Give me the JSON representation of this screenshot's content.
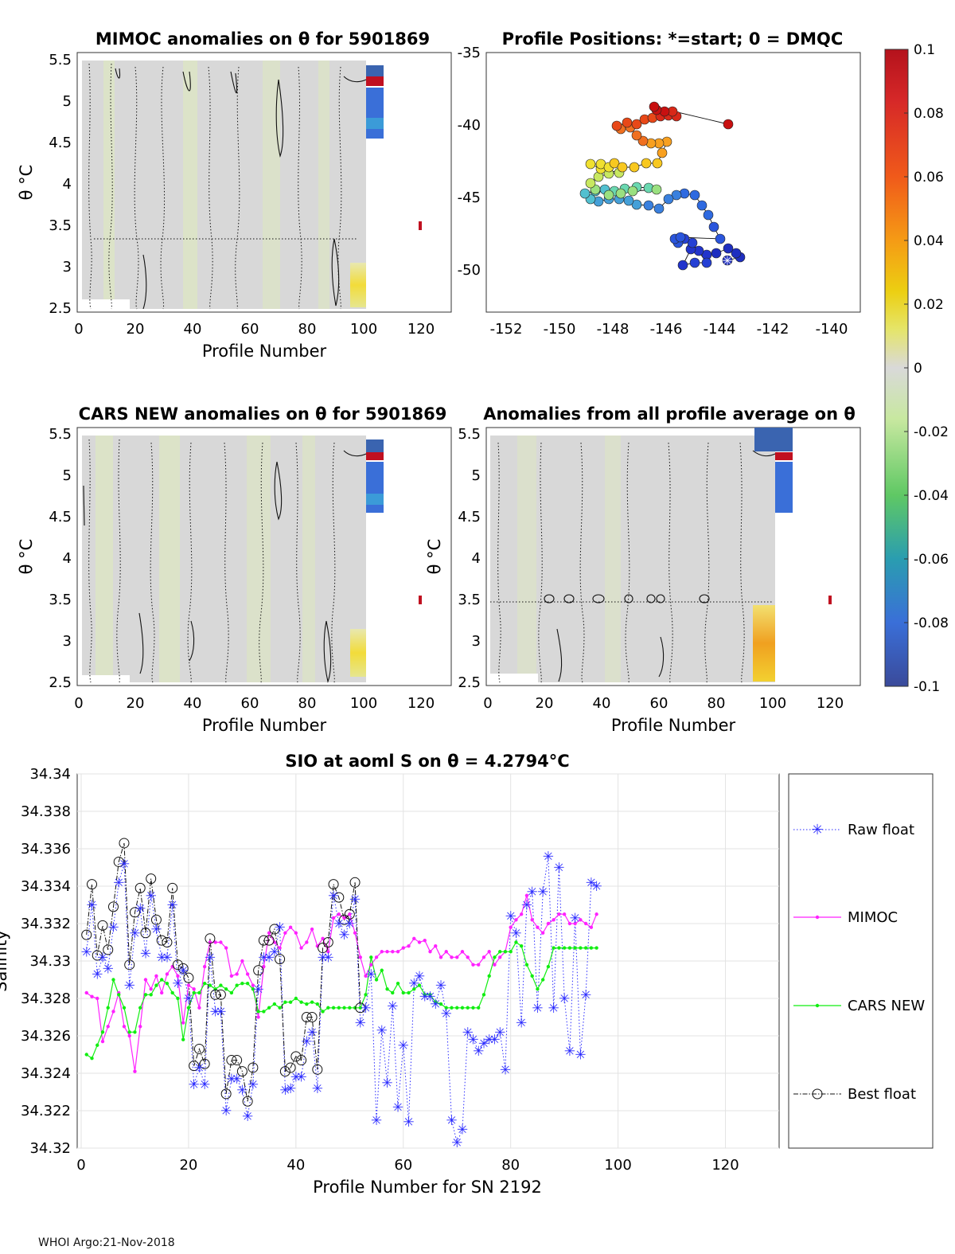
{
  "footer": "WHOI Argo:21-Nov-2018",
  "colorbar": {
    "ticks": [
      "0.1",
      "0.08",
      "0.06",
      "0.04",
      "0.02",
      "0",
      "-0.02",
      "-0.04",
      "-0.06",
      "-0.08",
      "-0.1"
    ],
    "stops": [
      "#b4121c",
      "#d62828",
      "#f05a1a",
      "#f59b15",
      "#eccf12",
      "#e5e56a",
      "#d9d9d9",
      "#c8e8a0",
      "#5fc864",
      "#2a9db0",
      "#3a6fd8",
      "#3a4a9a"
    ]
  },
  "panels": [
    {
      "title": "MIMOC anomalies on θ  for 5901869",
      "ylabel": "θ °C",
      "xlabel": "Profile Number",
      "yticks": [
        "5.5",
        "5",
        "4.5",
        "4",
        "3.5",
        "3",
        "2.5"
      ],
      "xticks": [
        "0",
        "20",
        "40",
        "60",
        "80",
        "100",
        "120"
      ]
    },
    {
      "title": "CARS NEW anomalies on θ for 5901869",
      "ylabel": "θ °C",
      "xlabel": "Profile Number",
      "yticks": [
        "5.5",
        "5",
        "4.5",
        "4",
        "3.5",
        "3",
        "2.5"
      ],
      "xticks": [
        "0",
        "20",
        "40",
        "60",
        "80",
        "100",
        "120"
      ]
    },
    {
      "title": "Anomalies from all profile average on θ",
      "ylabel": "θ °C",
      "xlabel": "Profile Number",
      "yticks": [
        "5.5",
        "5",
        "4.5",
        "4",
        "3.5",
        "3",
        "2.5"
      ],
      "xticks": [
        "0",
        "20",
        "40",
        "60",
        "80",
        "100",
        "120"
      ]
    }
  ],
  "map": {
    "title": "Profile Positions: *=start; 0 = DMQC",
    "xticks": [
      "-152",
      "-150",
      "-148",
      "-146",
      "-144",
      "-142",
      "-140"
    ],
    "yticks": [
      "-35",
      "-40",
      "-45",
      "-50"
    ]
  },
  "chart_data": {
    "type": "line",
    "title": "SIO at aoml S on θ = 4.2794°C",
    "xlabel": "Profile Number for SN 2192",
    "ylabel": "Salinity",
    "xlim": [
      0,
      130
    ],
    "ylim": [
      34.32,
      34.34
    ],
    "xticks": [
      "0",
      "20",
      "40",
      "60",
      "80",
      "100",
      "120"
    ],
    "yticks": [
      "34.34",
      "34.338",
      "34.336",
      "34.334",
      "34.332",
      "34.33",
      "34.328",
      "34.326",
      "34.324",
      "34.322",
      "34.32"
    ],
    "legend": [
      "Raw float",
      "MIMOC",
      "CARS NEW",
      "Best float"
    ],
    "raw_float": [
      [
        1,
        34.3305
      ],
      [
        2,
        34.333
      ],
      [
        3,
        34.3293
      ],
      [
        4,
        34.3302
      ],
      [
        5,
        34.3296
      ],
      [
        6,
        34.3318
      ],
      [
        7,
        34.3342
      ],
      [
        8,
        34.3352
      ],
      [
        9,
        34.3287
      ],
      [
        10,
        34.3315
      ],
      [
        11,
        34.3328
      ],
      [
        12,
        34.3304
      ],
      [
        13,
        34.3335
      ],
      [
        14,
        34.3317
      ],
      [
        15,
        34.3302
      ],
      [
        16,
        34.3302
      ],
      [
        17,
        34.333
      ],
      [
        18,
        34.3288
      ],
      [
        19,
        34.3295
      ],
      [
        20,
        34.328
      ],
      [
        21,
        34.3234
      ],
      [
        22,
        34.3243
      ],
      [
        23,
        34.3234
      ],
      [
        24,
        34.3302
      ],
      [
        25,
        34.3273
      ],
      [
        26,
        34.3273
      ],
      [
        27,
        34.322
      ],
      [
        28,
        34.3237
      ],
      [
        29,
        34.3237
      ],
      [
        30,
        34.3231
      ],
      [
        31,
        34.3217
      ],
      [
        32,
        34.3234
      ],
      [
        33,
        34.3285
      ],
      [
        34,
        34.3302
      ],
      [
        35,
        34.3302
      ],
      [
        36,
        34.3305
      ],
      [
        37,
        34.3318
      ],
      [
        38,
        34.3231
      ],
      [
        39,
        34.3232
      ],
      [
        40,
        34.3238
      ],
      [
        41,
        34.3238
      ],
      [
        42,
        34.3257
      ],
      [
        43,
        34.3262
      ],
      [
        44,
        34.3232
      ],
      [
        45,
        34.3302
      ],
      [
        46,
        34.3302
      ],
      [
        47,
        34.3335
      ],
      [
        48,
        34.332
      ],
      [
        49,
        34.3314
      ],
      [
        50,
        34.332
      ],
      [
        51,
        34.3333
      ],
      [
        52,
        34.3267
      ],
      [
        53,
        34.3275
      ],
      [
        54,
        34.3293
      ],
      [
        55,
        34.3215
      ],
      [
        56,
        34.3263
      ],
      [
        57,
        34.3235
      ],
      [
        58,
        34.3276
      ],
      [
        59,
        34.3222
      ],
      [
        60,
        34.3255
      ],
      [
        61,
        34.3214
      ],
      [
        62,
        34.3288
      ],
      [
        63,
        34.3292
      ],
      [
        64,
        34.3281
      ],
      [
        65,
        34.3281
      ],
      [
        66,
        34.3277
      ],
      [
        67,
        34.3287
      ],
      [
        68,
        34.3272
      ],
      [
        69,
        34.3215
      ],
      [
        70,
        34.3203
      ],
      [
        71,
        34.321
      ],
      [
        72,
        34.3262
      ],
      [
        73,
        34.3258
      ],
      [
        74,
        34.3252
      ],
      [
        75,
        34.3256
      ],
      [
        76,
        34.3258
      ],
      [
        77,
        34.3258
      ],
      [
        78,
        34.3262
      ],
      [
        79,
        34.3242
      ],
      [
        80,
        34.3324
      ],
      [
        81,
        34.3315
      ],
      [
        82,
        34.3267
      ],
      [
        83,
        34.333
      ],
      [
        84,
        34.3337
      ],
      [
        85,
        34.3275
      ],
      [
        86,
        34.3337
      ],
      [
        87,
        34.3356
      ],
      [
        88,
        34.3275
      ],
      [
        89,
        34.335
      ],
      [
        90,
        34.328
      ],
      [
        91,
        34.3252
      ],
      [
        92,
        34.3323
      ],
      [
        93,
        34.325
      ],
      [
        94,
        34.3282
      ],
      [
        95,
        34.3342
      ],
      [
        96,
        34.334
      ]
    ],
    "mimoc": [
      [
        1,
        34.3283
      ],
      [
        2,
        34.3281
      ],
      [
        3,
        34.328
      ],
      [
        4,
        34.3257
      ],
      [
        5,
        34.3265
      ],
      [
        6,
        34.3273
      ],
      [
        7,
        34.3283
      ],
      [
        8,
        34.3265
      ],
      [
        9,
        34.326
      ],
      [
        10,
        34.3241
      ],
      [
        11,
        34.3265
      ],
      [
        12,
        34.329
      ],
      [
        13,
        34.3285
      ],
      [
        14,
        34.3292
      ],
      [
        15,
        34.3283
      ],
      [
        16,
        34.3293
      ],
      [
        17,
        34.3297
      ],
      [
        18,
        34.3292
      ],
      [
        19,
        34.3267
      ],
      [
        20,
        34.3287
      ],
      [
        21,
        34.3285
      ],
      [
        22,
        34.3275
      ],
      [
        23,
        34.3297
      ],
      [
        24,
        34.331
      ],
      [
        25,
        34.331
      ],
      [
        26,
        34.331
      ],
      [
        27,
        34.3307
      ],
      [
        28,
        34.3292
      ],
      [
        29,
        34.3293
      ],
      [
        30,
        34.33
      ],
      [
        31,
        34.3293
      ],
      [
        32,
        34.3287
      ],
      [
        33,
        34.327
      ],
      [
        34,
        34.3297
      ],
      [
        35,
        34.3315
      ],
      [
        36,
        34.331
      ],
      [
        37,
        34.3307
      ],
      [
        38,
        34.3315
      ],
      [
        39,
        34.3318
      ],
      [
        40,
        34.3315
      ],
      [
        41,
        34.3307
      ],
      [
        42,
        34.331
      ],
      [
        43,
        34.3317
      ],
      [
        44,
        34.3308
      ],
      [
        45,
        34.3312
      ],
      [
        46,
        34.3305
      ],
      [
        47,
        34.3323
      ],
      [
        48,
        34.3325
      ],
      [
        49,
        34.3323
      ],
      [
        50,
        34.3325
      ],
      [
        51,
        34.3315
      ],
      [
        52,
        34.3302
      ],
      [
        53,
        34.3292
      ],
      [
        54,
        34.3298
      ],
      [
        55,
        34.3302
      ],
      [
        56,
        34.3305
      ],
      [
        57,
        34.3305
      ],
      [
        58,
        34.3305
      ],
      [
        59,
        34.3305
      ],
      [
        60,
        34.3307
      ],
      [
        61,
        34.3308
      ],
      [
        62,
        34.3312
      ],
      [
        63,
        34.331
      ],
      [
        64,
        34.3311
      ],
      [
        65,
        34.3305
      ],
      [
        66,
        34.3308
      ],
      [
        67,
        34.3302
      ],
      [
        68,
        34.3305
      ],
      [
        69,
        34.3302
      ],
      [
        70,
        34.3302
      ],
      [
        71,
        34.3305
      ],
      [
        72,
        34.3302
      ],
      [
        73,
        34.3298
      ],
      [
        74,
        34.3298
      ],
      [
        75,
        34.3302
      ],
      [
        76,
        34.3305
      ],
      [
        77,
        34.3298
      ],
      [
        78,
        34.3302
      ],
      [
        79,
        34.3305
      ],
      [
        80,
        34.3318
      ],
      [
        81,
        34.3322
      ],
      [
        82,
        34.3325
      ],
      [
        83,
        34.3335
      ],
      [
        84,
        34.3322
      ],
      [
        85,
        34.3318
      ],
      [
        86,
        34.3315
      ],
      [
        87,
        34.332
      ],
      [
        88,
        34.3322
      ],
      [
        89,
        34.3325
      ],
      [
        90,
        34.3325
      ],
      [
        91,
        34.332
      ],
      [
        92,
        34.332
      ],
      [
        93,
        34.3322
      ],
      [
        94,
        34.332
      ],
      [
        95,
        34.3318
      ],
      [
        96,
        34.3325
      ]
    ],
    "cars_new": [
      [
        1,
        34.325
      ],
      [
        2,
        34.3248
      ],
      [
        3,
        34.3255
      ],
      [
        4,
        34.3262
      ],
      [
        5,
        34.3275
      ],
      [
        6,
        34.329
      ],
      [
        7,
        34.3282
      ],
      [
        8,
        34.3275
      ],
      [
        9,
        34.3262
      ],
      [
        10,
        34.3262
      ],
      [
        11,
        34.3275
      ],
      [
        12,
        34.3282
      ],
      [
        13,
        34.3282
      ],
      [
        14,
        34.3287
      ],
      [
        15,
        34.329
      ],
      [
        16,
        34.3288
      ],
      [
        17,
        34.3283
      ],
      [
        18,
        34.328
      ],
      [
        19,
        34.3258
      ],
      [
        20,
        34.3275
      ],
      [
        21,
        34.3283
      ],
      [
        22,
        34.3283
      ],
      [
        23,
        34.3288
      ],
      [
        24,
        34.3287
      ],
      [
        25,
        34.3285
      ],
      [
        26,
        34.3287
      ],
      [
        27,
        34.3285
      ],
      [
        28,
        34.3283
      ],
      [
        29,
        34.3287
      ],
      [
        30,
        34.3288
      ],
      [
        31,
        34.3288
      ],
      [
        32,
        34.3285
      ],
      [
        33,
        34.3273
      ],
      [
        34,
        34.3273
      ],
      [
        35,
        34.3275
      ],
      [
        36,
        34.3277
      ],
      [
        37,
        34.3275
      ],
      [
        38,
        34.3278
      ],
      [
        39,
        34.3278
      ],
      [
        40,
        34.328
      ],
      [
        41,
        34.3278
      ],
      [
        42,
        34.3277
      ],
      [
        43,
        34.3278
      ],
      [
        44,
        34.3277
      ],
      [
        45,
        34.3273
      ],
      [
        46,
        34.3275
      ],
      [
        47,
        34.3275
      ],
      [
        48,
        34.3275
      ],
      [
        49,
        34.3275
      ],
      [
        50,
        34.3275
      ],
      [
        51,
        34.3275
      ],
      [
        52,
        34.3275
      ],
      [
        53,
        34.3282
      ],
      [
        54,
        34.3302
      ],
      [
        55,
        34.329
      ],
      [
        56,
        34.3295
      ],
      [
        57,
        34.3285
      ],
      [
        58,
        34.3283
      ],
      [
        59,
        34.3288
      ],
      [
        60,
        34.3283
      ],
      [
        61,
        34.3283
      ],
      [
        62,
        34.3285
      ],
      [
        63,
        34.3287
      ],
      [
        64,
        34.3282
      ],
      [
        65,
        34.3282
      ],
      [
        66,
        34.3278
      ],
      [
        67,
        34.3277
      ],
      [
        68,
        34.3275
      ],
      [
        69,
        34.3275
      ],
      [
        70,
        34.3275
      ],
      [
        71,
        34.3275
      ],
      [
        72,
        34.3275
      ],
      [
        73,
        34.3275
      ],
      [
        74,
        34.3275
      ],
      [
        75,
        34.3282
      ],
      [
        76,
        34.3292
      ],
      [
        77,
        34.3302
      ],
      [
        78,
        34.3305
      ],
      [
        79,
        34.3305
      ],
      [
        80,
        34.3305
      ],
      [
        81,
        34.331
      ],
      [
        82,
        34.3308
      ],
      [
        83,
        34.3298
      ],
      [
        84,
        34.3292
      ],
      [
        85,
        34.3285
      ],
      [
        86,
        34.329
      ],
      [
        87,
        34.3297
      ],
      [
        88,
        34.3307
      ],
      [
        89,
        34.3307
      ],
      [
        90,
        34.3307
      ],
      [
        91,
        34.3307
      ],
      [
        92,
        34.3307
      ],
      [
        93,
        34.3307
      ],
      [
        94,
        34.3307
      ],
      [
        95,
        34.3307
      ],
      [
        96,
        34.3307
      ]
    ],
    "best_float": [
      [
        1,
        34.3314
      ],
      [
        2,
        34.3341
      ],
      [
        3,
        34.3303
      ],
      [
        4,
        34.3319
      ],
      [
        5,
        34.3306
      ],
      [
        6,
        34.3329
      ],
      [
        7,
        34.3353
      ],
      [
        8,
        34.3363
      ],
      [
        9,
        34.3298
      ],
      [
        10,
        34.3326
      ],
      [
        11,
        34.3339
      ],
      [
        12,
        34.3315
      ],
      [
        13,
        34.3344
      ],
      [
        14,
        34.3322
      ],
      [
        15,
        34.3311
      ],
      [
        16,
        34.331
      ],
      [
        17,
        34.3339
      ],
      [
        18,
        34.3298
      ],
      [
        19,
        34.3296
      ],
      [
        20,
        34.3291
      ],
      [
        21,
        34.3244
      ],
      [
        22,
        34.3253
      ],
      [
        23,
        34.3245
      ],
      [
        24,
        34.3312
      ],
      [
        25,
        34.3282
      ],
      [
        26,
        34.3282
      ],
      [
        27,
        34.3229
      ],
      [
        28,
        34.3247
      ],
      [
        29,
        34.3247
      ],
      [
        30,
        34.3241
      ],
      [
        31,
        34.3225
      ],
      [
        32,
        34.3243
      ],
      [
        33,
        34.3295
      ],
      [
        34,
        34.3311
      ],
      [
        35,
        34.3311
      ],
      [
        36,
        34.3317
      ],
      [
        37,
        34.3301
      ],
      [
        38,
        34.3241
      ],
      [
        39,
        34.3243
      ],
      [
        40,
        34.3249
      ],
      [
        41,
        34.3247
      ],
      [
        42,
        34.327
      ],
      [
        43,
        34.327
      ],
      [
        44,
        34.3242
      ],
      [
        45,
        34.3307
      ],
      [
        46,
        34.331
      ],
      [
        47,
        34.3341
      ],
      [
        48,
        34.3334
      ],
      [
        49,
        34.3322
      ],
      [
        50,
        34.3325
      ],
      [
        51,
        34.3342
      ],
      [
        52,
        34.3275
      ]
    ]
  }
}
